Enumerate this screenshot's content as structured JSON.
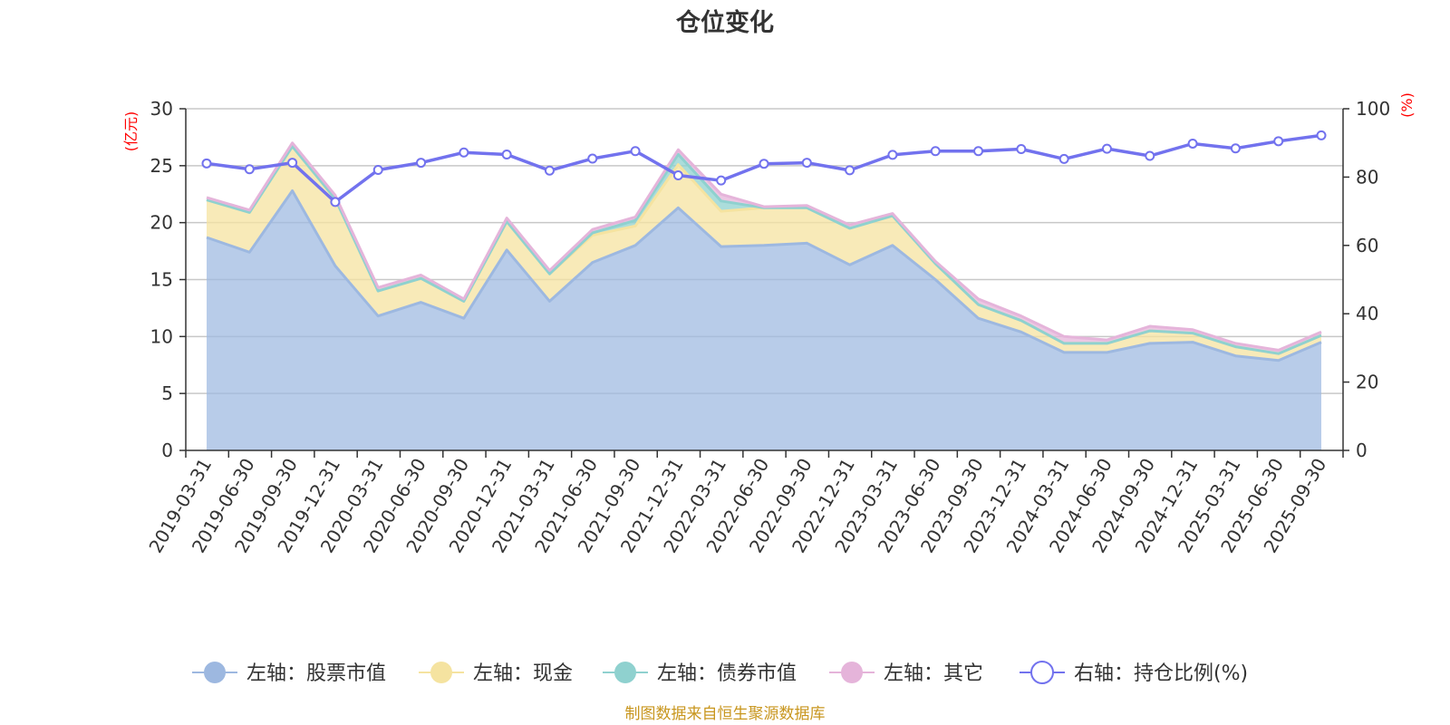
{
  "chart_data": {
    "type": "area",
    "title": "仓位变化",
    "source_note": "制图数据来自恒生聚源数据库",
    "left_axis": {
      "unit": "(亿元)",
      "ylim": [
        0,
        30
      ],
      "ticks": [
        "0",
        "5",
        "10",
        "15",
        "20",
        "25",
        "30"
      ]
    },
    "right_axis": {
      "unit": "(%)",
      "ylim": [
        0,
        100
      ],
      "ticks": [
        "0",
        "20",
        "40",
        "60",
        "80",
        "100"
      ]
    },
    "grid": true,
    "legend_position": "bottom",
    "categories": [
      "2019-03-31",
      "2019-06-30",
      "2019-09-30",
      "2019-12-31",
      "2020-03-31",
      "2020-06-30",
      "2020-09-30",
      "2020-12-31",
      "2021-03-31",
      "2021-06-30",
      "2021-09-30",
      "2021-12-31",
      "2022-03-31",
      "2022-06-30",
      "2022-09-30",
      "2022-12-31",
      "2023-03-31",
      "2023-06-30",
      "2023-09-30",
      "2023-12-31",
      "2024-03-31",
      "2024-06-30",
      "2024-09-30",
      "2024-12-31",
      "2025-03-31",
      "2025-06-30",
      "2025-09-30"
    ],
    "series": [
      {
        "name": "左轴：股票市值",
        "axis": "left",
        "kind": "stacked-area",
        "color": "#9db8e0",
        "values": [
          18.7,
          17.4,
          22.8,
          16.2,
          11.8,
          13.0,
          11.6,
          17.6,
          13.1,
          16.5,
          18.0,
          21.3,
          17.9,
          18.0,
          18.2,
          16.3,
          18.0,
          15.0,
          11.6,
          10.4,
          8.6,
          8.6,
          9.4,
          9.5,
          8.3,
          7.9,
          9.5
        ]
      },
      {
        "name": "左轴：现金",
        "axis": "left",
        "kind": "stacked-area",
        "color": "#f5e3a0",
        "values": [
          3.3,
          3.5,
          3.9,
          5.9,
          2.2,
          2.1,
          1.5,
          2.5,
          2.4,
          2.4,
          1.7,
          3.8,
          3.1,
          3.3,
          3.1,
          3.2,
          2.6,
          1.4,
          1.2,
          1.0,
          0.8,
          0.8,
          1.1,
          0.8,
          0.8,
          0.6,
          0.6
        ]
      },
      {
        "name": "左轴：债券市值",
        "axis": "left",
        "kind": "stacked-area",
        "color": "#8fd1cf",
        "values": [
          0,
          0,
          0,
          0,
          0,
          0,
          0,
          0,
          0,
          0.2,
          0.5,
          0.9,
          0.9,
          0,
          0,
          0,
          0,
          0,
          0,
          0,
          0,
          0,
          0,
          0,
          0,
          0,
          0
        ]
      },
      {
        "name": "左轴：其它",
        "axis": "left",
        "kind": "stacked-area",
        "color": "#e5b4da",
        "values": [
          0.2,
          0.2,
          0.3,
          0.3,
          0.3,
          0.3,
          0.2,
          0.3,
          0.3,
          0.3,
          0.3,
          0.4,
          0.6,
          0.1,
          0.2,
          0.3,
          0.2,
          0.2,
          0.5,
          0.4,
          0.6,
          0.3,
          0.4,
          0.3,
          0.3,
          0.3,
          0.3
        ]
      },
      {
        "name": "右轴：持仓比例(%)",
        "axis": "right",
        "kind": "line",
        "color": "#7272ee",
        "values": [
          84.0,
          82.3,
          84.2,
          72.7,
          82.1,
          84.2,
          87.2,
          86.6,
          81.9,
          85.4,
          87.6,
          80.5,
          79.0,
          83.9,
          84.2,
          82.0,
          86.5,
          87.6,
          87.6,
          88.2,
          85.3,
          88.3,
          86.2,
          89.8,
          88.4,
          90.5,
          92.2
        ]
      }
    ]
  }
}
